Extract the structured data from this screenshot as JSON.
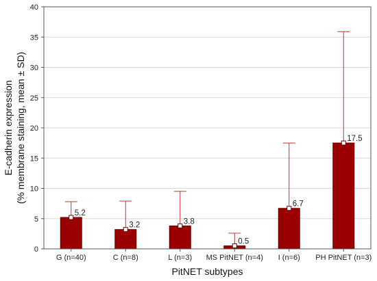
{
  "chart_data": {
    "type": "bar",
    "title": "",
    "xlabel": "PitNET subtypes",
    "ylabel_line1": "E-cadherin expression",
    "ylabel_line2": "(% membrane staining, mean ± SD)",
    "categories": [
      "G (n=40)",
      "C (n=8)",
      "L (n=3)",
      "MS PitNET (n=4)",
      "I (n=6)",
      "PH PitNET (n=3)"
    ],
    "values": [
      5.2,
      3.2,
      3.8,
      0.5,
      6.7,
      17.5
    ],
    "value_labels": [
      "5.2",
      "3.2",
      "3.8",
      "0.5",
      "6.7",
      "17.5"
    ],
    "error_upper": [
      7.8,
      7.9,
      9.5,
      2.6,
      17.5,
      35.9
    ],
    "ylim": [
      0,
      40
    ],
    "yticks": [
      0,
      5,
      10,
      15,
      20,
      25,
      30,
      35,
      40
    ],
    "grid": true,
    "colors": {
      "bar": "#990000",
      "bar_edge": "#6b0000",
      "error": "#c0392b",
      "grid": "#d9d9d9",
      "axis": "#555555"
    }
  }
}
